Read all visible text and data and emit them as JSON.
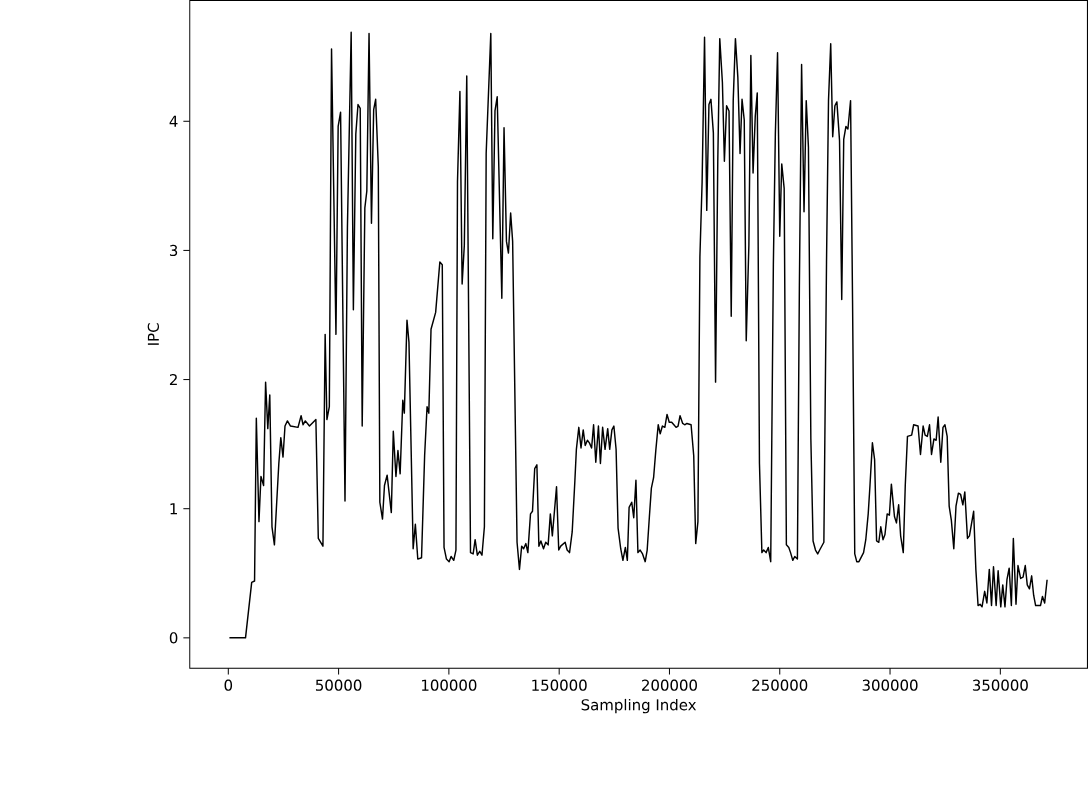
{
  "chart_data": {
    "type": "line",
    "xlabel": "Sampling Index",
    "ylabel": "IPC",
    "color": "#000000",
    "line_style": "solid",
    "xlim": [
      -17500,
      389500
    ],
    "ylim": [
      -0.235,
      4.935
    ],
    "xticks": [
      0,
      50000,
      100000,
      150000,
      200000,
      250000,
      300000,
      350000
    ],
    "yticks": [
      0,
      1,
      2,
      3,
      4
    ],
    "x": [
      500,
      7800,
      10600,
      11900,
      12700,
      13900,
      14800,
      16000,
      16900,
      17900,
      18800,
      19800,
      20900,
      22900,
      23800,
      24800,
      25700,
      26800,
      28200,
      31600,
      33000,
      33900,
      34900,
      36800,
      39700,
      40800,
      42900,
      43900,
      44700,
      45800,
      46800,
      48800,
      49800,
      50900,
      52900,
      54000,
      55700,
      56700,
      57800,
      58800,
      59800,
      60700,
      61900,
      62800,
      63800,
      64900,
      65900,
      66800,
      68000,
      68700,
      69900,
      70800,
      72000,
      73900,
      74800,
      76000,
      76900,
      77900,
      79100,
      79800,
      81000,
      81900,
      83800,
      84800,
      85900,
      87600,
      89000,
      90100,
      90900,
      91900,
      94000,
      95900,
      97000,
      97800,
      98900,
      100100,
      101000,
      102200,
      103200,
      103900,
      105000,
      106000,
      107000,
      108100,
      109800,
      111000,
      111900,
      112900,
      114000,
      115000,
      116100,
      116900,
      119000,
      119900,
      120900,
      121900,
      124000,
      125000,
      126100,
      127000,
      128000,
      128900,
      130900,
      132000,
      133000,
      133900,
      134900,
      135800,
      137000,
      137900,
      138900,
      139900,
      140800,
      141700,
      142900,
      143900,
      145000,
      146000,
      146900,
      148800,
      149800,
      150700,
      152700,
      153600,
      154700,
      155900,
      157100,
      157800,
      158900,
      159900,
      160900,
      161800,
      162800,
      163700,
      164700,
      165600,
      166600,
      167800,
      168700,
      169700,
      170800,
      172000,
      172900,
      173900,
      174800,
      175800,
      176700,
      177900,
      178900,
      180000,
      180900,
      181700,
      182900,
      183800,
      184800,
      185700,
      186700,
      187800,
      189000,
      189900,
      190900,
      191800,
      192800,
      193800,
      194900,
      195800,
      196800,
      197900,
      198900,
      199900,
      201000,
      202000,
      203000,
      203900,
      204800,
      206000,
      206900,
      207900,
      209800,
      211000,
      211900,
      212900,
      213800,
      214800,
      215900,
      216900,
      217900,
      218800,
      219900,
      220900,
      221900,
      222800,
      224000,
      224900,
      225900,
      227000,
      228000,
      228900,
      229900,
      231000,
      232000,
      232900,
      233900,
      234800,
      236000,
      236900,
      237900,
      238900,
      239800,
      240800,
      241900,
      242700,
      243800,
      244800,
      245900,
      247100,
      248000,
      249000,
      250000,
      250900,
      252000,
      253000,
      254100,
      254900,
      255900,
      256800,
      258000,
      258900,
      259900,
      261000,
      262000,
      263000,
      264100,
      265100,
      266200,
      267200,
      268100,
      270000,
      271200,
      272100,
      273100,
      274000,
      275000,
      275900,
      277100,
      278100,
      279000,
      280000,
      280900,
      282100,
      283000,
      284000,
      284900,
      285900,
      288000,
      289000,
      290100,
      290900,
      292000,
      293000,
      293900,
      294900,
      295800,
      296800,
      297700,
      298700,
      299700,
      300600,
      302000,
      302900,
      303900,
      304800,
      306000,
      306900,
      307900,
      309800,
      310700,
      312700,
      313800,
      315000,
      315900,
      316900,
      317900,
      318800,
      319900,
      320900,
      321800,
      323000,
      324000,
      324900,
      325900,
      326800,
      327800,
      328900,
      329900,
      331000,
      332000,
      333000,
      333900,
      335100,
      336000,
      337000,
      337900,
      338900,
      339900,
      340800,
      341700,
      342900,
      343900,
      345000,
      346000,
      346900,
      348100,
      349000,
      350200,
      351100,
      352100,
      353000,
      354000,
      355000,
      355900,
      357100,
      358000,
      359200,
      360300,
      361300,
      362200,
      363200,
      364200,
      365100,
      366000,
      368200,
      369100,
      370100,
      371200
    ],
    "values": [
      0,
      0,
      0.43,
      0.44,
      1.7,
      0.9,
      1.25,
      1.18,
      1.98,
      1.62,
      1.88,
      0.86,
      0.72,
      1.35,
      1.55,
      1.4,
      1.64,
      1.68,
      1.64,
      1.63,
      1.72,
      1.65,
      1.68,
      1.64,
      1.69,
      0.77,
      0.71,
      2.35,
      1.69,
      1.79,
      4.56,
      2.35,
      3.96,
      4.07,
      1.06,
      3.18,
      4.69,
      2.54,
      3.9,
      4.13,
      4.1,
      1.64,
      3.33,
      3.46,
      4.68,
      3.21,
      4.09,
      4.17,
      3.65,
      1.05,
      0.92,
      1.18,
      1.26,
      0.97,
      1.6,
      1.25,
      1.45,
      1.27,
      1.84,
      1.74,
      2.46,
      2.29,
      0.69,
      0.88,
      0.61,
      0.62,
      1.41,
      1.79,
      1.74,
      2.39,
      2.52,
      2.91,
      2.89,
      0.7,
      0.61,
      0.59,
      0.63,
      0.6,
      0.68,
      3.53,
      4.23,
      2.74,
      3.04,
      4.35,
      0.66,
      0.65,
      0.76,
      0.64,
      0.67,
      0.64,
      0.86,
      3.75,
      4.68,
      3.09,
      4.08,
      4.19,
      2.63,
      3.95,
      3.07,
      2.98,
      3.29,
      3.07,
      0.74,
      0.53,
      0.71,
      0.69,
      0.73,
      0.66,
      0.96,
      0.98,
      1.31,
      1.34,
      0.71,
      0.75,
      0.69,
      0.74,
      0.72,
      0.96,
      0.79,
      1.17,
      0.68,
      0.71,
      0.74,
      0.68,
      0.66,
      0.82,
      1.21,
      1.46,
      1.63,
      1.47,
      1.61,
      1.49,
      1.53,
      1.51,
      1.47,
      1.65,
      1.36,
      1.64,
      1.35,
      1.63,
      1.46,
      1.62,
      1.46,
      1.61,
      1.64,
      1.46,
      0.85,
      0.69,
      0.6,
      0.7,
      0.6,
      1.01,
      1.05,
      0.93,
      1.22,
      0.66,
      0.68,
      0.65,
      0.59,
      0.68,
      0.94,
      1.16,
      1.24,
      1.45,
      1.65,
      1.58,
      1.64,
      1.63,
      1.73,
      1.67,
      1.67,
      1.65,
      1.63,
      1.64,
      1.72,
      1.66,
      1.65,
      1.66,
      1.65,
      1.41,
      0.73,
      0.9,
      2.95,
      3.53,
      4.65,
      3.31,
      4.13,
      4.17,
      3.91,
      1.98,
      3.69,
      4.64,
      4.3,
      3.69,
      4.12,
      4.08,
      2.49,
      4.16,
      4.64,
      4.34,
      3.75,
      4.17,
      4.01,
      2.3,
      3.04,
      4.51,
      3.6,
      4.04,
      4.22,
      1.35,
      0.66,
      0.68,
      0.66,
      0.7,
      0.59,
      2.89,
      3.9,
      4.53,
      3.11,
      3.67,
      3.48,
      0.72,
      0.7,
      0.66,
      0.6,
      0.63,
      0.61,
      2.73,
      4.44,
      3.3,
      4.16,
      3.8,
      1.54,
      0.75,
      0.68,
      0.65,
      0.68,
      0.74,
      2.91,
      4.16,
      4.6,
      3.88,
      4.12,
      4.15,
      3.85,
      2.62,
      3.86,
      3.96,
      3.94,
      4.16,
      2.61,
      0.65,
      0.59,
      0.59,
      0.66,
      0.76,
      0.96,
      1.18,
      1.51,
      1.38,
      0.75,
      0.74,
      0.86,
      0.76,
      0.8,
      0.96,
      0.95,
      1.19,
      0.94,
      0.89,
      1.03,
      0.79,
      0.66,
      1.18,
      1.56,
      1.57,
      1.65,
      1.64,
      1.42,
      1.64,
      1.57,
      1.56,
      1.65,
      1.42,
      1.54,
      1.53,
      1.71,
      1.36,
      1.63,
      1.65,
      1.56,
      1.02,
      0.91,
      0.69,
      1.02,
      1.12,
      1.11,
      1.03,
      1.13,
      0.77,
      0.79,
      0.89,
      0.98,
      0.53,
      0.25,
      0.26,
      0.24,
      0.36,
      0.27,
      0.53,
      0.25,
      0.55,
      0.25,
      0.52,
      0.24,
      0.41,
      0.24,
      0.45,
      0.54,
      0.25,
      0.77,
      0.26,
      0.56,
      0.46,
      0.47,
      0.56,
      0.41,
      0.38,
      0.48,
      0.33,
      0.25,
      0.25,
      0.32,
      0.27,
      0.45
    ]
  }
}
